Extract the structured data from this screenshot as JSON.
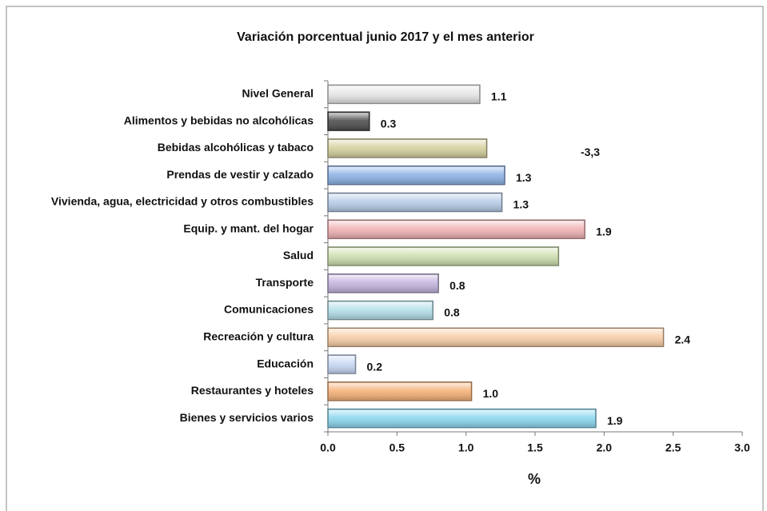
{
  "chart_data": {
    "type": "hbar",
    "title": "Variación porcentual junio 2017 y el mes anterior",
    "x_label": "%",
    "categories": [
      "Nivel General",
      "Alimentos y bebidas no alcohólicas",
      "Bebidas alcohólicas y tabaco",
      "Prendas de vestir y calzado",
      "Vivienda, agua, electricidad y otros combustibles",
      "Equip. y mant. del hogar",
      "Salud",
      "Transporte",
      "Comunicaciones",
      "Recreación y cultura",
      "Educación",
      "Restaurantes y hoteles",
      "Bienes y servicios varios"
    ],
    "values": [
      1.1,
      0.3,
      1.15,
      1.28,
      1.26,
      1.86,
      1.67,
      0.8,
      0.76,
      2.43,
      0.2,
      1.04,
      1.94
    ],
    "value_labels": [
      "1.1",
      "0.3",
      null,
      "1.3",
      "1.3",
      "1.9",
      null,
      "0.8",
      "0.8",
      "2.4",
      "0.2",
      "1.0",
      "1.9"
    ],
    "colors": [
      "#e6e6e6",
      "#505050",
      "#d6d2a0",
      "#8fb3e6",
      "#b8cde8",
      "#f0b4b6",
      "#cfe0b0",
      "#c4b5de",
      "#b5e0ea",
      "#f8cfa8",
      "#c8d8f5",
      "#f5b27a",
      "#8fd8f0"
    ],
    "annotations": [
      "-3,3"
    ],
    "xlim": [
      0,
      3
    ],
    "xticks": [
      {
        "value": 0,
        "label": "0.0"
      },
      {
        "value": 0.5,
        "label": "0.5"
      },
      {
        "value": 1,
        "label": "1.0"
      },
      {
        "value": 1.5,
        "label": "1.5"
      },
      {
        "value": 2,
        "label": "2.0"
      },
      {
        "value": 2.5,
        "label": "2.5"
      },
      {
        "value": 3,
        "label": "3.0"
      }
    ]
  }
}
